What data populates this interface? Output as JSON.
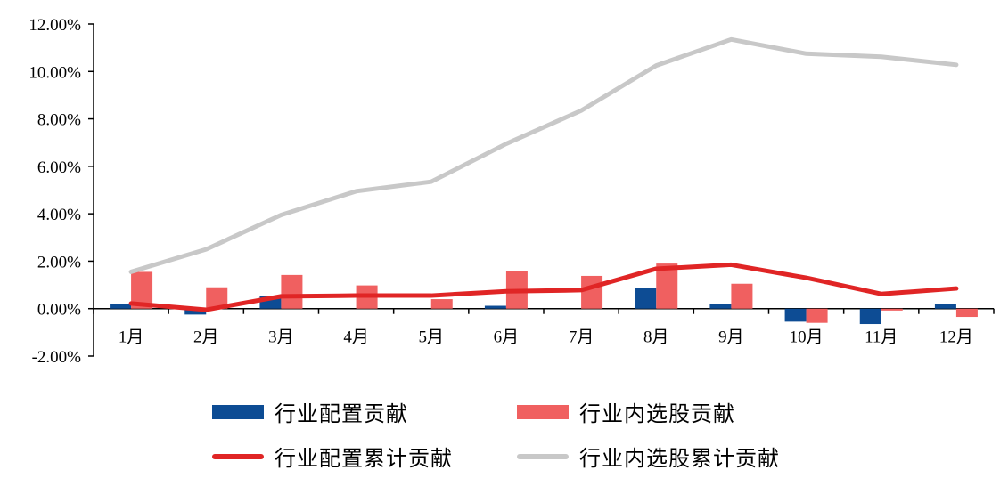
{
  "chart_data": {
    "type": "bar+line",
    "categories": [
      "1月",
      "2月",
      "3月",
      "4月",
      "5月",
      "6月",
      "7月",
      "8月",
      "9月",
      "10月",
      "11月",
      "12月"
    ],
    "series": [
      {
        "name": "行业配置贡献",
        "type": "bar",
        "color": "#0d4c94",
        "values": [
          0.18,
          -0.25,
          0.55,
          0.0,
          0.0,
          0.12,
          0.0,
          0.88,
          0.18,
          -0.55,
          -0.65,
          0.2
        ]
      },
      {
        "name": "行业内选股贡献",
        "type": "bar",
        "color": "#f06060",
        "values": [
          1.55,
          0.9,
          1.42,
          0.98,
          0.4,
          1.6,
          1.38,
          1.9,
          1.05,
          -0.6,
          -0.08,
          -0.35
        ]
      },
      {
        "name": "行业配置累计贡献",
        "type": "line",
        "color": "#e02525",
        "values": [
          0.22,
          -0.05,
          0.52,
          0.55,
          0.55,
          0.73,
          0.78,
          1.68,
          1.85,
          1.3,
          0.62,
          0.85
        ]
      },
      {
        "name": "行业内选股累计贡献",
        "type": "line",
        "color": "#c8c8c8",
        "values": [
          1.55,
          2.5,
          3.95,
          4.95,
          5.35,
          6.95,
          8.35,
          10.25,
          11.35,
          10.75,
          10.62,
          10.28
        ]
      }
    ],
    "ylim": [
      -2,
      12
    ],
    "yticks": [
      "12.00%",
      "10.00%",
      "8.00%",
      "6.00%",
      "4.00%",
      "2.00%",
      "0.00%",
      "-2.00%"
    ],
    "ytick_values": [
      12,
      10,
      8,
      6,
      4,
      2,
      0,
      -2
    ],
    "grid": false,
    "legend_position": "bottom"
  }
}
